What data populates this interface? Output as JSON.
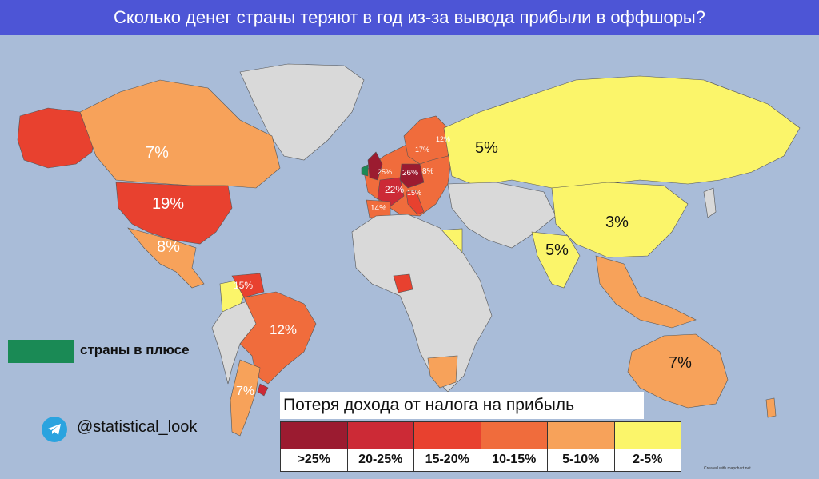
{
  "title": "Сколько денег страны теряют в год из-за вывода прибыли в оффшоры?",
  "map_labels": {
    "canada": "7%",
    "usa": "19%",
    "mexico": "8%",
    "venezuela": "15%",
    "brazil": "12%",
    "argentina": "7%",
    "russia": "5%",
    "china": "3%",
    "india": "5%",
    "australia": "7%",
    "spain": "14%",
    "france": "22%",
    "belgium": "25%",
    "germany": "26%",
    "poland": "8%",
    "sweden": "17%",
    "finland": "12%",
    "italy": "15%"
  },
  "green_legend": "страны в плюсе",
  "handle": "@statistical_look",
  "legend": {
    "title": "Потеря дохода от налога на прибыль",
    "items": [
      {
        "label": ">25%",
        "color": "#9b1b30"
      },
      {
        "label": "20-25%",
        "color": "#cc2a36"
      },
      {
        "label": "15-20%",
        "color": "#e8412f"
      },
      {
        "label": "10-15%",
        "color": "#f06c3c"
      },
      {
        "label": "5-10%",
        "color": "#f7a25a"
      },
      {
        "label": "2-5%",
        "color": "#fbf56a"
      }
    ]
  },
  "colors": {
    "title_bg": "#4d55d6",
    "ocean": "#a9bcd8",
    "no_data": "#d9d9d9",
    "positive": "#1a8a55"
  },
  "credit": "Created with mapchart.net"
}
